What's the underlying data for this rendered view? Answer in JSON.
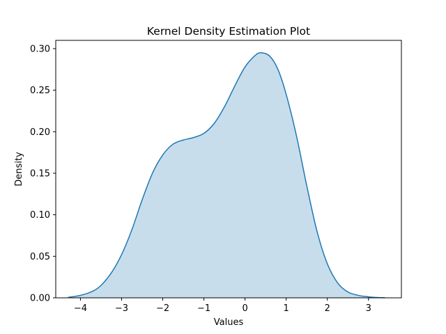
{
  "chart_data": {
    "type": "area",
    "title": "Kernel Density Estimation Plot",
    "xlabel": "Values",
    "ylabel": "Density",
    "xlim": [
      -4.6,
      3.8
    ],
    "ylim": [
      0,
      0.31
    ],
    "xticks": [
      -4,
      -3,
      -2,
      -1,
      0,
      1,
      2,
      3
    ],
    "xtick_labels": [
      "−4",
      "−3",
      "−2",
      "−1",
      "0",
      "1",
      "2",
      "3"
    ],
    "yticks": [
      0.0,
      0.05,
      0.1,
      0.15,
      0.2,
      0.25,
      0.3
    ],
    "ytick_labels": [
      "0.00",
      "0.05",
      "0.10",
      "0.15",
      "0.20",
      "0.25",
      "0.30"
    ],
    "grid": false,
    "series": [
      {
        "color": "#1f77b4",
        "fill_color": "#1f77b4",
        "fill_opacity": 0.25,
        "x": [
          -4.3,
          -4.0,
          -3.7,
          -3.5,
          -3.25,
          -3.0,
          -2.75,
          -2.5,
          -2.25,
          -2.0,
          -1.75,
          -1.5,
          -1.25,
          -1.0,
          -0.75,
          -0.5,
          -0.25,
          0.0,
          0.25,
          0.4,
          0.6,
          0.8,
          1.0,
          1.25,
          1.5,
          1.75,
          2.0,
          2.25,
          2.5,
          2.75,
          3.0,
          3.2,
          3.4
        ],
        "y": [
          0.0005,
          0.003,
          0.008,
          0.015,
          0.03,
          0.052,
          0.082,
          0.118,
          0.15,
          0.172,
          0.185,
          0.19,
          0.193,
          0.198,
          0.21,
          0.23,
          0.255,
          0.278,
          0.292,
          0.295,
          0.291,
          0.275,
          0.245,
          0.195,
          0.135,
          0.08,
          0.041,
          0.018,
          0.007,
          0.003,
          0.0012,
          0.0004,
          0.0001
        ]
      }
    ]
  }
}
